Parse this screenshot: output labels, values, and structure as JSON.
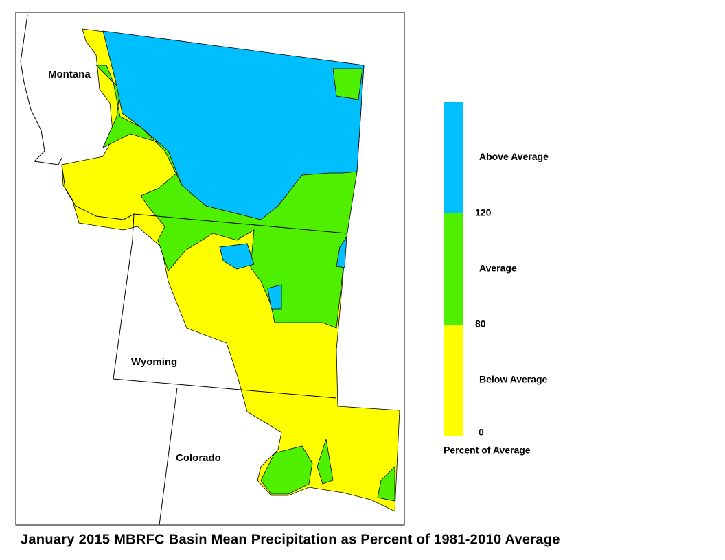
{
  "map": {
    "labels": [
      "Montana",
      "Wyoming",
      "Colorado"
    ],
    "legend": {
      "title": "Percent of Average",
      "classes": [
        {
          "label": "Below Average",
          "color": "#ffff00"
        },
        {
          "label": "Average",
          "color": "#4ef000"
        },
        {
          "label": "Above Average",
          "color": "#00bfff"
        }
      ],
      "ticks": [
        0,
        80,
        120
      ]
    }
  },
  "caption": "January 2015 MBRFC Basin Mean Precipitation as Percent of 1981-2010 Average"
}
